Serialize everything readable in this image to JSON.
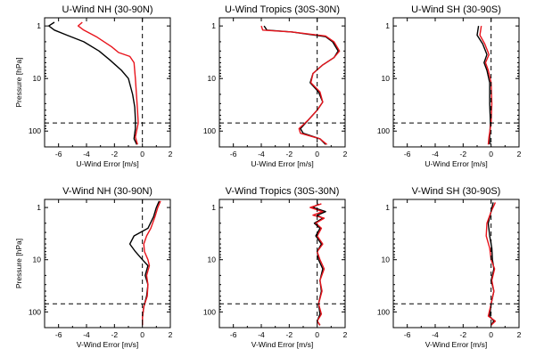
{
  "colors": {
    "series_black": "#000000",
    "series_red": "#e8141c",
    "axes": "#000000"
  },
  "chart_data": [
    {
      "type": "line",
      "title": "U-Wind NH (30-90N)",
      "xlabel": "U-Wind Error [m/s]",
      "ylabel": "Pressure [hPa]",
      "xlim": [
        -7,
        2
      ],
      "xticks": [
        -6,
        -4,
        -2,
        0,
        2
      ],
      "ylim": [
        200,
        0.7
      ],
      "yscale": "log",
      "yticks": [
        1,
        10,
        100
      ],
      "ref_vline": 0,
      "ref_hline": 70,
      "series": [
        {
          "color": "#000000",
          "values": [
            {
              "x": -6.3,
              "y": 0.85
            },
            {
              "x": -6.7,
              "y": 1.0
            },
            {
              "x": -6.3,
              "y": 1.2
            },
            {
              "x": -5.4,
              "y": 1.5
            },
            {
              "x": -4.2,
              "y": 2.0
            },
            {
              "x": -3.1,
              "y": 3.0
            },
            {
              "x": -2.3,
              "y": 4.5
            },
            {
              "x": -1.5,
              "y": 7.0
            },
            {
              "x": -1.0,
              "y": 10.0
            },
            {
              "x": -0.7,
              "y": 20.0
            },
            {
              "x": -0.55,
              "y": 35.0
            },
            {
              "x": -0.5,
              "y": 60.0
            },
            {
              "x": -0.5,
              "y": 90.0
            },
            {
              "x": -0.6,
              "y": 140.0
            },
            {
              "x": -0.4,
              "y": 180.0
            }
          ]
        },
        {
          "color": "#e8141c",
          "values": [
            {
              "x": -4.3,
              "y": 0.85
            },
            {
              "x": -4.6,
              "y": 1.0
            },
            {
              "x": -4.2,
              "y": 1.2
            },
            {
              "x": -3.3,
              "y": 1.6
            },
            {
              "x": -2.2,
              "y": 2.5
            },
            {
              "x": -1.7,
              "y": 3.2
            },
            {
              "x": -0.9,
              "y": 3.8
            },
            {
              "x": -0.6,
              "y": 5.0
            },
            {
              "x": -0.5,
              "y": 10.0
            },
            {
              "x": -0.35,
              "y": 40.0
            },
            {
              "x": -0.3,
              "y": 70.0
            },
            {
              "x": -0.5,
              "y": 130.0
            },
            {
              "x": -0.35,
              "y": 180.0
            }
          ]
        }
      ]
    },
    {
      "type": "line",
      "title": "U-Wind Tropics (30S-30N)",
      "xlabel": "U-Wind Error [m/s]",
      "ylabel": "",
      "xlim": [
        -7,
        2
      ],
      "xticks": [
        -6,
        -4,
        -2,
        0,
        2
      ],
      "ylim": [
        200,
        0.7
      ],
      "yscale": "log",
      "yticks": [
        1,
        10,
        100
      ],
      "ref_vline": 0,
      "ref_hline": 70,
      "series": [
        {
          "color": "#000000",
          "values": [
            {
              "x": -3.8,
              "y": 1.0
            },
            {
              "x": -3.6,
              "y": 1.2
            },
            {
              "x": -1.8,
              "y": 1.3
            },
            {
              "x": 0.6,
              "y": 1.6
            },
            {
              "x": 1.1,
              "y": 2.0
            },
            {
              "x": 1.5,
              "y": 3.0
            },
            {
              "x": 1.2,
              "y": 4.0
            },
            {
              "x": 0.4,
              "y": 5.5
            },
            {
              "x": -0.3,
              "y": 8.0
            },
            {
              "x": -0.5,
              "y": 12.0
            },
            {
              "x": 0.1,
              "y": 18.0
            },
            {
              "x": 0.4,
              "y": 28.0
            },
            {
              "x": 0.0,
              "y": 40.0
            },
            {
              "x": -0.6,
              "y": 60.0
            },
            {
              "x": -1.2,
              "y": 90.0
            },
            {
              "x": -1.0,
              "y": 110.0
            },
            {
              "x": 0.2,
              "y": 140.0
            },
            {
              "x": 0.6,
              "y": 180.0
            }
          ]
        },
        {
          "color": "#e8141c",
          "values": [
            {
              "x": -4.0,
              "y": 1.0
            },
            {
              "x": -3.9,
              "y": 1.2
            },
            {
              "x": -1.8,
              "y": 1.3
            },
            {
              "x": 0.6,
              "y": 1.55
            },
            {
              "x": 1.2,
              "y": 2.0
            },
            {
              "x": 1.6,
              "y": 3.0
            },
            {
              "x": 1.2,
              "y": 4.0
            },
            {
              "x": 0.4,
              "y": 5.5
            },
            {
              "x": -0.3,
              "y": 8.0
            },
            {
              "x": -0.45,
              "y": 12.0
            },
            {
              "x": 0.2,
              "y": 18.0
            },
            {
              "x": 0.4,
              "y": 28.0
            },
            {
              "x": 0.0,
              "y": 40.0
            },
            {
              "x": -0.6,
              "y": 60.0
            },
            {
              "x": -1.3,
              "y": 90.0
            },
            {
              "x": -1.2,
              "y": 110.0
            },
            {
              "x": 0.2,
              "y": 140.0
            },
            {
              "x": 0.7,
              "y": 180.0
            }
          ]
        }
      ]
    },
    {
      "type": "line",
      "title": "U-Wind SH (30-90S)",
      "xlabel": "U-Wind Error [m/s]",
      "ylabel": "",
      "xlim": [
        -7,
        2
      ],
      "xticks": [
        -6,
        -4,
        -2,
        0,
        2
      ],
      "ylim": [
        200,
        0.7
      ],
      "yscale": "log",
      "yticks": [
        1,
        10,
        100
      ],
      "ref_vline": 0,
      "ref_hline": 70,
      "series": [
        {
          "color": "#000000",
          "values": [
            {
              "x": -0.9,
              "y": 1.0
            },
            {
              "x": -1.0,
              "y": 1.5
            },
            {
              "x": -0.6,
              "y": 2.2
            },
            {
              "x": -0.3,
              "y": 3.5
            },
            {
              "x": -0.5,
              "y": 5.0
            },
            {
              "x": -0.3,
              "y": 7.0
            },
            {
              "x": -0.1,
              "y": 12.0
            },
            {
              "x": -0.1,
              "y": 30.0
            },
            {
              "x": -0.05,
              "y": 70.0
            },
            {
              "x": -0.1,
              "y": 130.0
            },
            {
              "x": -0.1,
              "y": 180.0
            }
          ]
        },
        {
          "color": "#e8141c",
          "values": [
            {
              "x": -0.7,
              "y": 1.0
            },
            {
              "x": -0.8,
              "y": 1.5
            },
            {
              "x": -0.45,
              "y": 2.2
            },
            {
              "x": -0.15,
              "y": 3.5
            },
            {
              "x": -0.4,
              "y": 5.0
            },
            {
              "x": -0.2,
              "y": 7.0
            },
            {
              "x": 0.0,
              "y": 12.0
            },
            {
              "x": 0.05,
              "y": 30.0
            },
            {
              "x": 0.0,
              "y": 70.0
            },
            {
              "x": -0.15,
              "y": 130.0
            },
            {
              "x": -0.2,
              "y": 180.0
            }
          ]
        }
      ]
    },
    {
      "type": "line",
      "title": "V-Wind NH (30-90N)",
      "xlabel": "V-Wind Error [m/s]",
      "ylabel": "Pressure [hPa]",
      "xlim": [
        -7,
        2
      ],
      "xticks": [
        -6,
        -4,
        -2,
        0,
        2
      ],
      "ylim": [
        200,
        0.7
      ],
      "yscale": "log",
      "yticks": [
        1,
        10,
        100
      ],
      "ref_vline": 0,
      "ref_hline": 70,
      "series": [
        {
          "color": "#000000",
          "values": [
            {
              "x": 1.2,
              "y": 0.75
            },
            {
              "x": 1.0,
              "y": 1.0
            },
            {
              "x": 0.8,
              "y": 1.5
            },
            {
              "x": 0.4,
              "y": 2.5
            },
            {
              "x": -0.6,
              "y": 3.5
            },
            {
              "x": -0.9,
              "y": 5.0
            },
            {
              "x": -0.5,
              "y": 7.0
            },
            {
              "x": 0.0,
              "y": 10.0
            },
            {
              "x": 0.4,
              "y": 13.0
            },
            {
              "x": 0.2,
              "y": 20.0
            },
            {
              "x": 0.4,
              "y": 30.0
            },
            {
              "x": 0.3,
              "y": 50.0
            },
            {
              "x": 0.1,
              "y": 80.0
            },
            {
              "x": 0.0,
              "y": 130.0
            },
            {
              "x": 0.0,
              "y": 180.0
            }
          ]
        },
        {
          "color": "#e8141c",
          "values": [
            {
              "x": 1.3,
              "y": 0.75
            },
            {
              "x": 1.1,
              "y": 1.0
            },
            {
              "x": 0.9,
              "y": 1.5
            },
            {
              "x": 0.6,
              "y": 2.5
            },
            {
              "x": 0.3,
              "y": 3.5
            },
            {
              "x": 0.1,
              "y": 5.0
            },
            {
              "x": 0.15,
              "y": 7.0
            },
            {
              "x": 0.4,
              "y": 10.0
            },
            {
              "x": 0.5,
              "y": 13.0
            },
            {
              "x": 0.3,
              "y": 20.0
            },
            {
              "x": 0.4,
              "y": 30.0
            },
            {
              "x": 0.35,
              "y": 50.0
            },
            {
              "x": 0.1,
              "y": 80.0
            },
            {
              "x": 0.0,
              "y": 130.0
            },
            {
              "x": 0.0,
              "y": 180.0
            }
          ]
        }
      ]
    },
    {
      "type": "line",
      "title": "V-Wind Tropics (30S-30N)",
      "xlabel": "V-Wind Error [m/s]",
      "ylabel": "",
      "xlim": [
        -7,
        2
      ],
      "xticks": [
        -6,
        -4,
        -2,
        0,
        2
      ],
      "ylim": [
        200,
        0.7
      ],
      "yscale": "log",
      "yticks": [
        1,
        10,
        100
      ],
      "ref_vline": 0,
      "ref_hline": 70,
      "series": [
        {
          "color": "#000000",
          "values": [
            {
              "x": 0.1,
              "y": 0.85
            },
            {
              "x": -0.3,
              "y": 1.0
            },
            {
              "x": 0.6,
              "y": 1.2
            },
            {
              "x": 0.0,
              "y": 1.4
            },
            {
              "x": 0.4,
              "y": 1.6
            },
            {
              "x": -0.2,
              "y": 2.0
            },
            {
              "x": 0.2,
              "y": 2.5
            },
            {
              "x": -0.1,
              "y": 3.5
            },
            {
              "x": 0.3,
              "y": 5.0
            },
            {
              "x": 0.0,
              "y": 7.0
            },
            {
              "x": 0.1,
              "y": 10.0
            },
            {
              "x": 0.4,
              "y": 15.0
            },
            {
              "x": 0.2,
              "y": 25.0
            },
            {
              "x": 0.3,
              "y": 40.0
            },
            {
              "x": 0.1,
              "y": 70.0
            },
            {
              "x": 0.2,
              "y": 110.0
            },
            {
              "x": 0.0,
              "y": 150.0
            },
            {
              "x": 0.2,
              "y": 180.0
            }
          ]
        },
        {
          "color": "#e8141c",
          "values": [
            {
              "x": 0.3,
              "y": 0.85
            },
            {
              "x": -0.5,
              "y": 1.0
            },
            {
              "x": 0.4,
              "y": 1.2
            },
            {
              "x": -0.3,
              "y": 1.4
            },
            {
              "x": 0.5,
              "y": 1.6
            },
            {
              "x": -0.1,
              "y": 2.0
            },
            {
              "x": 0.3,
              "y": 2.5
            },
            {
              "x": 0.0,
              "y": 3.5
            },
            {
              "x": 0.4,
              "y": 5.0
            },
            {
              "x": 0.0,
              "y": 7.0
            },
            {
              "x": 0.2,
              "y": 10.0
            },
            {
              "x": 0.5,
              "y": 15.0
            },
            {
              "x": 0.2,
              "y": 25.0
            },
            {
              "x": 0.35,
              "y": 40.0
            },
            {
              "x": 0.1,
              "y": 70.0
            },
            {
              "x": 0.3,
              "y": 110.0
            },
            {
              "x": 0.0,
              "y": 150.0
            },
            {
              "x": 0.2,
              "y": 180.0
            }
          ]
        }
      ]
    },
    {
      "type": "line",
      "title": "V-Wind SH (30-90S)",
      "xlabel": "V-Wind Error [m/s]",
      "ylabel": "",
      "xlim": [
        -7,
        2
      ],
      "xticks": [
        -6,
        -4,
        -2,
        0,
        2
      ],
      "ylim": [
        200,
        0.7
      ],
      "yscale": "log",
      "yticks": [
        1,
        10,
        100
      ],
      "ref_vline": 0,
      "ref_hline": 70,
      "series": [
        {
          "color": "#000000",
          "values": [
            {
              "x": 0.15,
              "y": 0.8
            },
            {
              "x": 0.0,
              "y": 1.2
            },
            {
              "x": -0.2,
              "y": 2.0
            },
            {
              "x": -0.1,
              "y": 3.5
            },
            {
              "x": 0.05,
              "y": 6.0
            },
            {
              "x": 0.1,
              "y": 10.0
            },
            {
              "x": 0.2,
              "y": 15.0
            },
            {
              "x": 0.0,
              "y": 25.0
            },
            {
              "x": 0.2,
              "y": 40.0
            },
            {
              "x": 0.0,
              "y": 70.0
            },
            {
              "x": -0.1,
              "y": 120.0
            },
            {
              "x": 0.2,
              "y": 150.0
            },
            {
              "x": 0.0,
              "y": 180.0
            }
          ]
        },
        {
          "color": "#e8141c",
          "values": [
            {
              "x": 0.3,
              "y": 0.8
            },
            {
              "x": 0.0,
              "y": 1.2
            },
            {
              "x": -0.3,
              "y": 2.0
            },
            {
              "x": -0.35,
              "y": 3.5
            },
            {
              "x": -0.1,
              "y": 6.0
            },
            {
              "x": 0.0,
              "y": 10.0
            },
            {
              "x": 0.25,
              "y": 15.0
            },
            {
              "x": 0.05,
              "y": 25.0
            },
            {
              "x": 0.2,
              "y": 40.0
            },
            {
              "x": 0.0,
              "y": 70.0
            },
            {
              "x": -0.2,
              "y": 120.0
            },
            {
              "x": 0.3,
              "y": 150.0
            },
            {
              "x": 0.0,
              "y": 180.0
            }
          ]
        }
      ]
    }
  ]
}
